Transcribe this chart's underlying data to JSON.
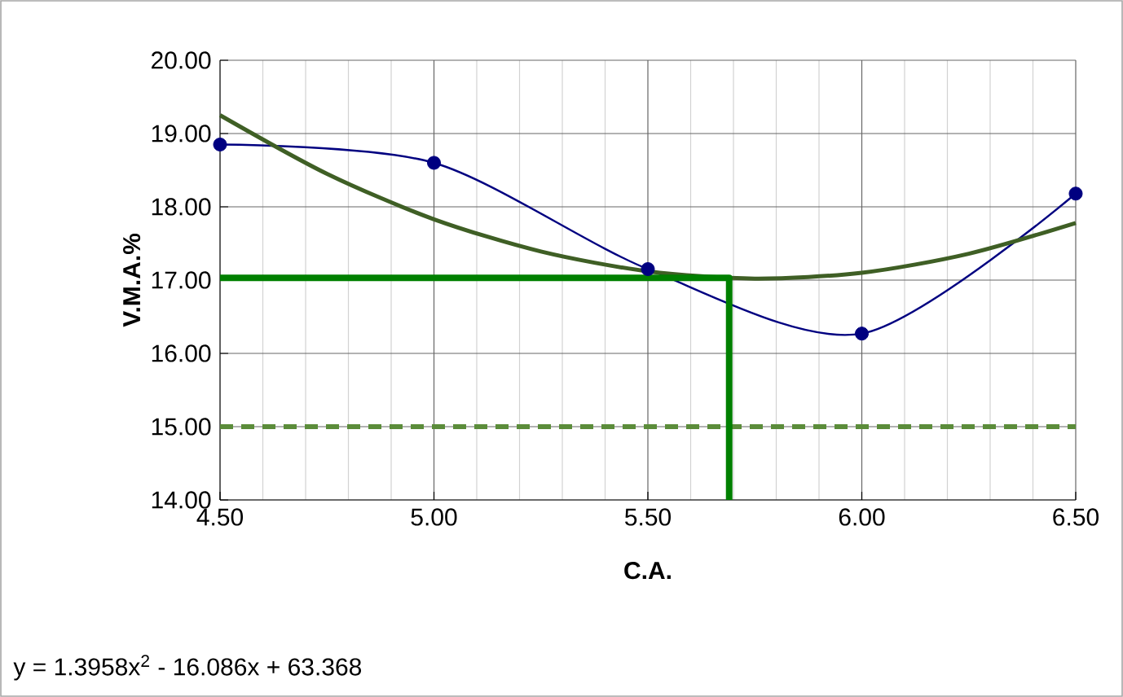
{
  "chart_data": {
    "type": "line",
    "xlabel": "C.A.",
    "ylabel": "V.M.A.%",
    "xlim": [
      4.5,
      6.5
    ],
    "ylim": [
      14,
      20
    ],
    "xticks": [
      {
        "value": 4.5,
        "label": "4.50"
      },
      {
        "value": 5.0,
        "label": "5.00"
      },
      {
        "value": 5.5,
        "label": "5.50"
      },
      {
        "value": 6.0,
        "label": "6.00"
      },
      {
        "value": 6.5,
        "label": "6.50"
      }
    ],
    "yticks": [
      {
        "value": 14,
        "label": "14.00"
      },
      {
        "value": 15,
        "label": "15.00"
      },
      {
        "value": 16,
        "label": "16.00"
      },
      {
        "value": 17,
        "label": "17.00"
      },
      {
        "value": 18,
        "label": "18.00"
      },
      {
        "value": 19,
        "label": "19.00"
      },
      {
        "value": 20,
        "label": "20.00"
      }
    ],
    "grid": true,
    "series": [
      {
        "color": "#000080",
        "marker": "circle",
        "x": [
          4.5,
          5.0,
          5.5,
          6.0,
          6.5
        ],
        "values": [
          18.85,
          18.6,
          17.15,
          16.27,
          18.18
        ]
      },
      {
        "color": "#3f5f25",
        "marker": "none",
        "x": [
          4.5,
          4.75,
          5.0,
          5.25,
          5.5,
          5.75,
          6.0,
          6.25,
          6.5
        ],
        "values": [
          19.25,
          18.45,
          17.83,
          17.39,
          17.12,
          17.02,
          17.1,
          17.36,
          17.78
        ]
      },
      {
        "color": "#008000",
        "marker": "none",
        "x": [
          4.5,
          5.69,
          5.69
        ],
        "values": [
          17.03,
          17.03,
          14.0
        ]
      }
    ],
    "ref_lines": [
      {
        "axis": "y",
        "value": 15,
        "color": "#5b8c3a",
        "line_style": "dashed"
      }
    ],
    "annotations": [
      "y = 1.3958x$^{2}$ - 16.086x + 63.368"
    ]
  }
}
